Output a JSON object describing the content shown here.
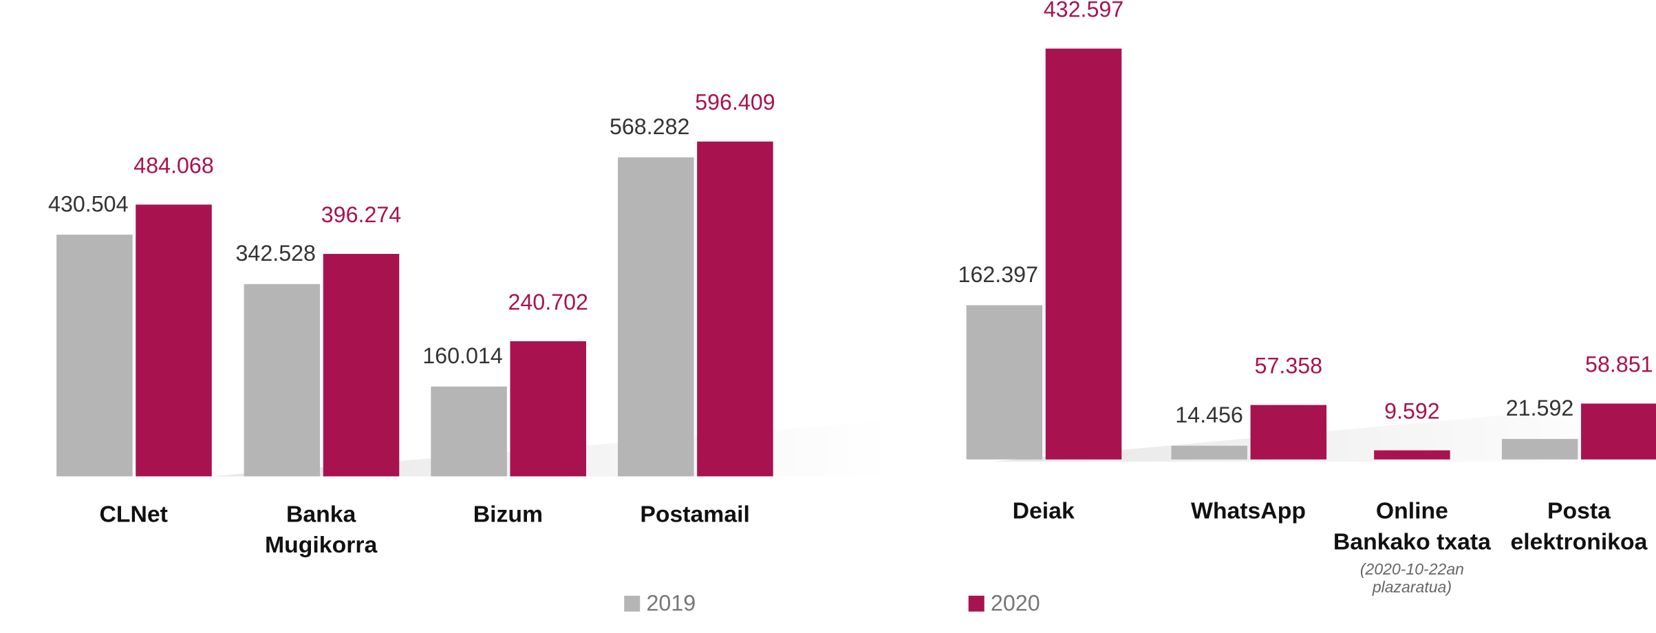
{
  "chart_data": [
    {
      "type": "bar",
      "categories": [
        "CLNet",
        "Banka Mugikorra",
        "Bizum",
        "Postamail"
      ],
      "series": [
        {
          "name": "2019",
          "color": "#b5b5b5",
          "values": [
            430504,
            342528,
            160014,
            568282
          ],
          "value_labels": [
            "430.504",
            "342.528",
            "160.014",
            "568.282"
          ]
        },
        {
          "name": "2020",
          "color": "#a8134f",
          "values": [
            484068,
            396274,
            240702,
            596409
          ],
          "value_labels": [
            "484.068",
            "396.274",
            "240.702",
            "596.409"
          ]
        }
      ]
    },
    {
      "type": "bar",
      "categories": [
        "Deiak",
        "WhatsApp",
        "Online Bankako txata",
        "Posta elektronikoa"
      ],
      "annotations": [
        {
          "category": 2,
          "text": "(2020-10-22an plazaratua)"
        }
      ],
      "series": [
        {
          "color": "#b5b5b5",
          "values": [
            162397,
            14456,
            null,
            21592
          ],
          "value_labels": [
            "162.397",
            "14.456",
            null,
            "21.592"
          ]
        },
        {
          "color": "#a8134f",
          "values": [
            432597,
            57358,
            9592,
            58851
          ],
          "value_labels": [
            "432.597",
            "57.358",
            "9.592",
            "58.851"
          ]
        }
      ]
    }
  ]
}
